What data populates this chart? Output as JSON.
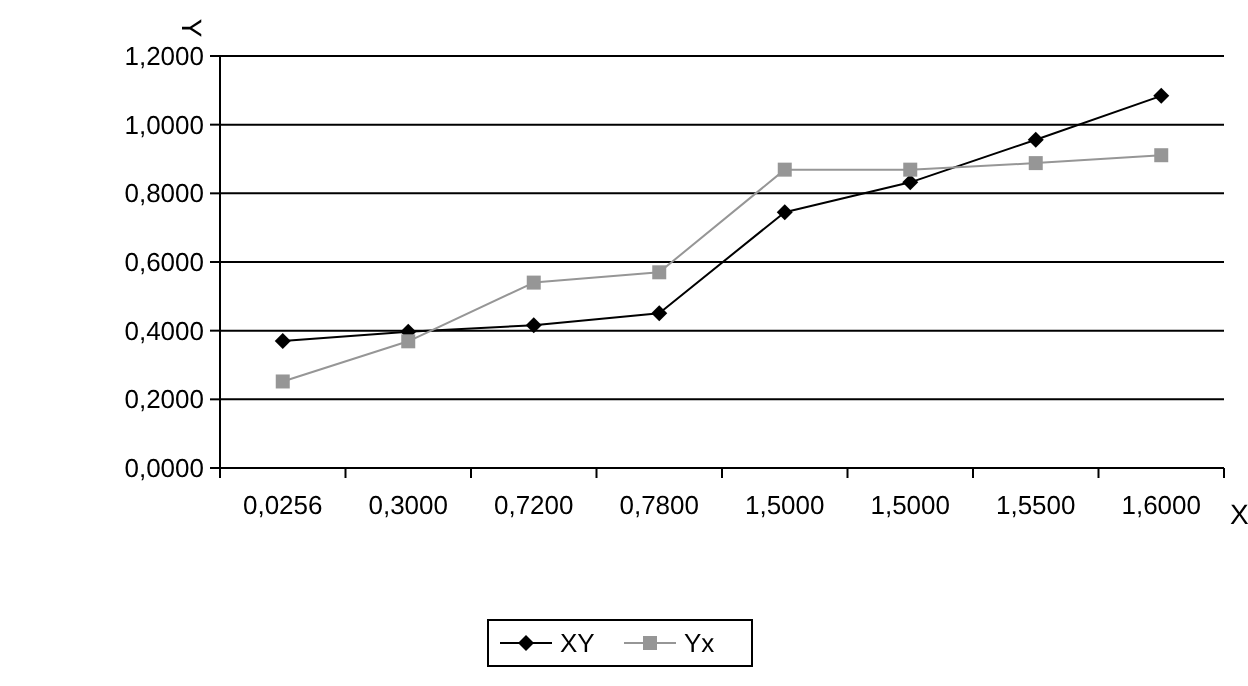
{
  "chart_data": {
    "type": "line",
    "xlabel": "X",
    "ylabel": "Y",
    "categories": [
      "0,0256",
      "0,3000",
      "0,7200",
      "0,7800",
      "1,5000",
      "1,5000",
      "1,5500",
      "1,6000"
    ],
    "series": [
      {
        "name": "XY",
        "color": "#000000",
        "marker": "diamond",
        "values": [
          0.37,
          0.397,
          0.416,
          0.451,
          0.745,
          0.832,
          0.956,
          1.084
        ]
      },
      {
        "name": "Yx",
        "color": "#969696",
        "marker": "square",
        "values": [
          0.252,
          0.369,
          0.54,
          0.57,
          0.869,
          0.869,
          0.888,
          0.911
        ]
      }
    ],
    "ylim": [
      0,
      1.2
    ],
    "yticks": [
      {
        "value": 0,
        "label": "0,0000"
      },
      {
        "value": 0.2,
        "label": "0,2000"
      },
      {
        "value": 0.4,
        "label": "0,4000"
      },
      {
        "value": 0.6,
        "label": "0,6000"
      },
      {
        "value": 0.8,
        "label": "0,8000"
      },
      {
        "value": 1,
        "label": "1,0000"
      },
      {
        "value": 1.2,
        "label": "1,2000"
      }
    ],
    "grid": "y",
    "legend": "bottom"
  }
}
